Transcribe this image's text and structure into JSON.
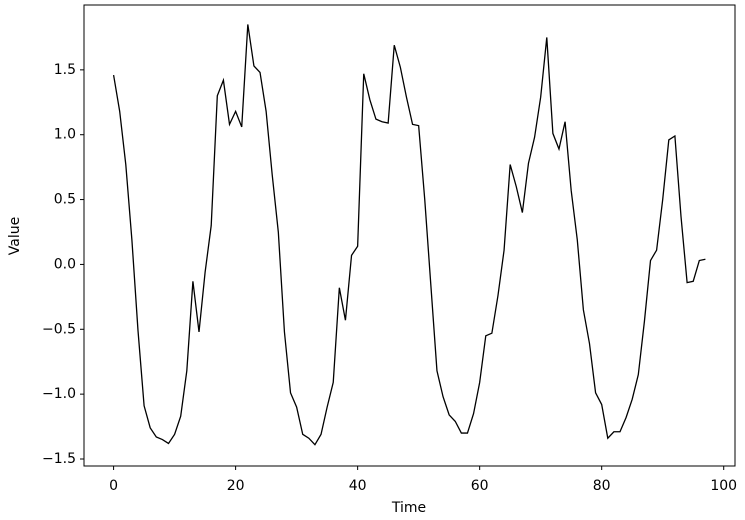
{
  "chart_data": {
    "type": "line",
    "xlabel": "Time",
    "ylabel": "Value",
    "x": [
      0,
      1,
      2,
      3,
      4,
      5,
      6,
      7,
      8,
      9,
      10,
      11,
      12,
      13,
      14,
      15,
      16,
      17,
      18,
      19,
      20,
      21,
      22,
      23,
      24,
      25,
      26,
      27,
      28,
      29,
      30,
      31,
      32,
      33,
      34,
      35,
      36,
      37,
      38,
      39,
      40,
      41,
      42,
      43,
      44,
      45,
      46,
      47,
      48,
      49,
      50,
      51,
      52,
      53,
      54,
      55,
      56,
      57,
      58,
      59,
      60,
      61,
      62,
      63,
      64,
      65,
      66,
      67,
      68,
      69,
      70,
      71,
      72,
      73,
      74,
      75,
      76,
      77,
      78,
      79,
      80,
      81,
      82,
      83,
      84,
      85,
      86,
      87,
      88,
      89,
      90,
      91,
      92,
      93,
      94,
      95,
      96,
      97
    ],
    "series": [
      {
        "color": "#000000",
        "values": [
          1.46,
          1.18,
          0.77,
          0.19,
          -0.51,
          -1.09,
          -1.26,
          -1.33,
          -1.35,
          -1.38,
          -1.31,
          -1.17,
          -0.82,
          -0.13,
          -0.52,
          -0.06,
          0.3,
          1.3,
          1.42,
          1.08,
          1.18,
          1.06,
          1.85,
          1.53,
          1.48,
          1.18,
          0.69,
          0.25,
          -0.52,
          -0.99,
          -1.1,
          -1.31,
          -1.34,
          -1.39,
          -1.31,
          -1.1,
          -0.91,
          -0.18,
          -0.43,
          0.07,
          0.14,
          1.47,
          1.27,
          1.12,
          1.1,
          1.09,
          1.69,
          1.52,
          1.29,
          1.08,
          1.07,
          0.5,
          -0.16,
          -0.82,
          -1.02,
          -1.16,
          -1.21,
          -1.3,
          -1.3,
          -1.15,
          -0.91,
          -0.55,
          -0.53,
          -0.24,
          0.11,
          0.77,
          0.6,
          0.4,
          0.78,
          0.98,
          1.29,
          1.75,
          1.01,
          0.89,
          1.1,
          0.57,
          0.19,
          -0.35,
          -0.61,
          -0.99,
          -1.08,
          -1.34,
          -1.29,
          -1.29,
          -1.18,
          -1.04,
          -0.85,
          -0.44,
          0.03,
          0.11,
          0.5,
          0.96,
          0.99,
          0.37,
          -0.14,
          -0.13,
          0.03,
          0.04
        ]
      }
    ],
    "xlim": [
      -4.85,
      101.85
    ],
    "ylim": [
      -1.554,
      2.0
    ],
    "xticks": [
      0,
      20,
      40,
      60,
      80,
      100
    ],
    "yticks": [
      {
        "value": -1.5,
        "label": "−1.5"
      },
      {
        "value": -1.0,
        "label": "−1.0"
      },
      {
        "value": -0.5,
        "label": "−0.5"
      },
      {
        "value": 0,
        "label": "0.0"
      },
      {
        "value": 0.5,
        "label": "0.5"
      },
      {
        "value": 1.0,
        "label": "1.0"
      },
      {
        "value": 1.5,
        "label": "1.5"
      }
    ],
    "grid": false
  }
}
